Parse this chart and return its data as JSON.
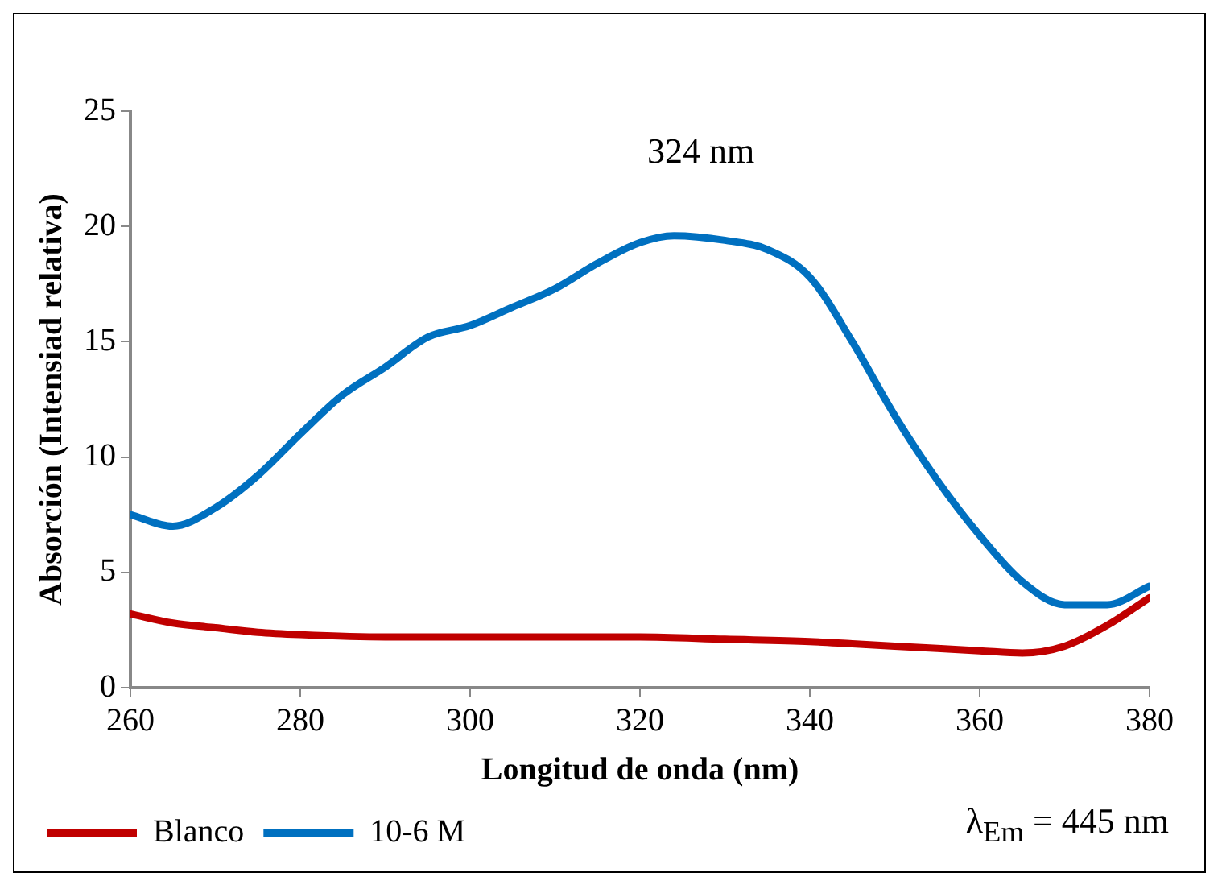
{
  "chart_data": {
    "type": "line",
    "xlabel": "Longitud de onda (nm)",
    "ylabel": "Absorción (Intensiad relativa)",
    "xlim": [
      260,
      380
    ],
    "xticks": [
      260,
      280,
      300,
      320,
      340,
      360,
      380
    ],
    "ylim": [
      0,
      25
    ],
    "yticks": [
      0,
      5,
      10,
      15,
      20,
      25
    ],
    "grid": false,
    "legend": "bottom left",
    "marker": "none",
    "line_style": "solid",
    "annotations": [
      "324 nm",
      "λ$_{Em}$ = 445 nm"
    ],
    "series": [
      {
        "name": "Blanco",
        "color": "#c00000",
        "x": [
          260,
          265,
          270,
          275,
          280,
          290,
          300,
          310,
          320,
          330,
          340,
          345,
          350,
          360,
          365,
          370,
          375,
          380
        ],
        "values": [
          3.2,
          2.8,
          2.6,
          2.4,
          2.3,
          2.2,
          2.2,
          2.2,
          2.2,
          2.1,
          2.0,
          1.9,
          1.8,
          1.6,
          1.5,
          1.8,
          2.7,
          3.9
        ]
      },
      {
        "name": "10-6 M",
        "color": "#0070c0",
        "x": [
          260,
          265,
          270,
          275,
          280,
          285,
          290,
          295,
          300,
          305,
          310,
          315,
          320,
          324,
          330,
          335,
          340,
          345,
          350,
          355,
          360,
          365,
          370,
          375,
          380
        ],
        "values": [
          7.5,
          7.0,
          7.8,
          9.2,
          11.0,
          12.7,
          13.9,
          15.2,
          15.7,
          16.5,
          17.3,
          18.4,
          19.3,
          19.6,
          19.4,
          19.0,
          17.8,
          15.0,
          11.8,
          9.0,
          6.6,
          4.6,
          3.6,
          3.6,
          4.4
        ]
      }
    ]
  }
}
